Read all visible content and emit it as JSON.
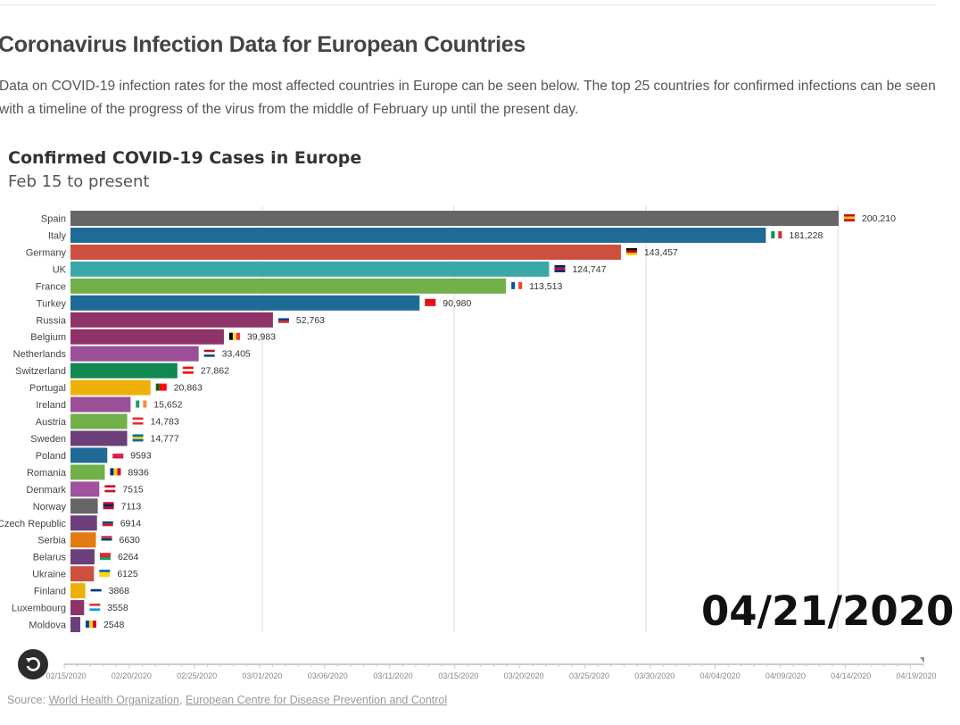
{
  "page": {
    "title": "Coronavirus Infection Data for European Countries",
    "intro": "Data on COVID-19 infection rates for the most affected countries in Europe can be seen below. The top 25 countries for confirmed infections can be seen with a timeline of the progress of the virus from the middle of February up until the present day."
  },
  "chart_data": {
    "type": "bar",
    "orientation": "horizontal",
    "title": "Confirmed COVID-19 Cases in Europe",
    "subtitle": "Feb 15 to present",
    "current_date": "04/21/2020",
    "xlim": [
      0,
      200210
    ],
    "gridlines": [
      50000,
      100000,
      150000,
      200000
    ],
    "grid": true,
    "bars": [
      {
        "label": "Spain",
        "value": 200210,
        "display": "200,210",
        "color": "#666666",
        "flag": [
          "#c60b1e",
          "#ffc400",
          "#c60b1e"
        ]
      },
      {
        "label": "Italy",
        "value": 181228,
        "display": "181,228",
        "color": "#1f6a96",
        "flag": [
          "#009246",
          "#ffffff",
          "#ce2b37"
        ],
        "vertical": true
      },
      {
        "label": "Germany",
        "value": 143457,
        "display": "143,457",
        "color": "#cc5040",
        "flag": [
          "#000000",
          "#dd0000",
          "#ffce00"
        ]
      },
      {
        "label": "UK",
        "value": 124747,
        "display": "124,747",
        "color": "#3aa8a6",
        "flag": [
          "#012169",
          "#c8102e",
          "#012169"
        ]
      },
      {
        "label": "France",
        "value": 113513,
        "display": "113,513",
        "color": "#72b04a",
        "flag": [
          "#0055a4",
          "#ffffff",
          "#ef4135"
        ],
        "vertical": true
      },
      {
        "label": "Turkey",
        "value": 90980,
        "display": "90,980",
        "color": "#1f6a96",
        "flag": [
          "#e30a17",
          "#e30a17",
          "#e30a17"
        ]
      },
      {
        "label": "Russia",
        "value": 52763,
        "display": "52,763",
        "color": "#8e3368",
        "flag": [
          "#ffffff",
          "#0039a6",
          "#d52b1e"
        ]
      },
      {
        "label": "Belgium",
        "value": 39983,
        "display": "39,983",
        "color": "#8e3368",
        "flag": [
          "#000000",
          "#fdda24",
          "#ef3340"
        ],
        "vertical": true
      },
      {
        "label": "Netherlands",
        "value": 33405,
        "display": "33,405",
        "color": "#9b4f96",
        "flag": [
          "#ae1c28",
          "#ffffff",
          "#21468b"
        ]
      },
      {
        "label": "Switzerland",
        "value": 27862,
        "display": "27,862",
        "color": "#118752",
        "flag": [
          "#ff0000",
          "#ffffff",
          "#ff0000"
        ]
      },
      {
        "label": "Portugal",
        "value": 20863,
        "display": "20,863",
        "color": "#edb109",
        "flag": [
          "#006600",
          "#ff0000",
          "#ff0000"
        ],
        "vertical": true
      },
      {
        "label": "Ireland",
        "value": 15652,
        "display": "15,652",
        "color": "#9b4f96",
        "flag": [
          "#169b62",
          "#ffffff",
          "#ff883e"
        ],
        "vertical": true
      },
      {
        "label": "Austria",
        "value": 14783,
        "display": "14,783",
        "color": "#72b04a",
        "flag": [
          "#ed2939",
          "#ffffff",
          "#ed2939"
        ]
      },
      {
        "label": "Sweden",
        "value": 14777,
        "display": "14,777",
        "color": "#6c3f7a",
        "flag": [
          "#006aa7",
          "#fecc00",
          "#006aa7"
        ]
      },
      {
        "label": "Poland",
        "value": 9593,
        "display": "9593",
        "color": "#1f6a96",
        "flag": [
          "#ffffff",
          "#dc143c",
          "#dc143c"
        ]
      },
      {
        "label": "Romania",
        "value": 8936,
        "display": "8936",
        "color": "#72b04a",
        "flag": [
          "#002b7f",
          "#fcd116",
          "#ce1126"
        ],
        "vertical": true
      },
      {
        "label": "Denmark",
        "value": 7515,
        "display": "7515",
        "color": "#a052a0",
        "flag": [
          "#c8102e",
          "#ffffff",
          "#c8102e"
        ]
      },
      {
        "label": "Norway",
        "value": 7113,
        "display": "7113",
        "color": "#666666",
        "flag": [
          "#ba0c2f",
          "#00205b",
          "#ba0c2f"
        ]
      },
      {
        "label": "Czech Republic",
        "value": 6914,
        "display": "6914",
        "color": "#6c3f7a",
        "flag": [
          "#ffffff",
          "#11457e",
          "#d7141a"
        ]
      },
      {
        "label": "Serbia",
        "value": 6630,
        "display": "6630",
        "color": "#e57a10",
        "flag": [
          "#c6363c",
          "#0c4076",
          "#ffffff"
        ]
      },
      {
        "label": "Belarus",
        "value": 6264,
        "display": "6264",
        "color": "#6c3f7a",
        "flag": [
          "#d22730",
          "#d22730",
          "#00af66"
        ]
      },
      {
        "label": "Ukraine",
        "value": 6125,
        "display": "6125",
        "color": "#cc5040",
        "flag": [
          "#0057b7",
          "#ffd700",
          "#ffd700"
        ]
      },
      {
        "label": "Finland",
        "value": 3868,
        "display": "3868",
        "color": "#edb109",
        "flag": [
          "#ffffff",
          "#003580",
          "#ffffff"
        ]
      },
      {
        "label": "Luxembourg",
        "value": 3558,
        "display": "3558",
        "color": "#8e3368",
        "flag": [
          "#ed2939",
          "#ffffff",
          "#00a1de"
        ]
      },
      {
        "label": "Moldova",
        "value": 2548,
        "display": "2548",
        "color": "#6c3f7a",
        "flag": [
          "#0046ae",
          "#ffd200",
          "#cc092f"
        ],
        "vertical": true
      }
    ],
    "timeline": {
      "ticks": [
        "02/15/2020",
        "02/20/2020",
        "02/25/2020",
        "03/01/2020",
        "03/06/2020",
        "03/11/2020",
        "03/15/2020",
        "03/20/2020",
        "03/25/2020",
        "03/30/2020",
        "04/04/2020",
        "04/09/2020",
        "04/14/2020",
        "04/19/2020"
      ],
      "progress": 1.0
    }
  },
  "controls": {
    "replay_icon": "replay-icon"
  },
  "source": {
    "label": "Source:",
    "links": [
      "World Health Organization",
      "European Centre for Disease Prevention and Control"
    ]
  }
}
